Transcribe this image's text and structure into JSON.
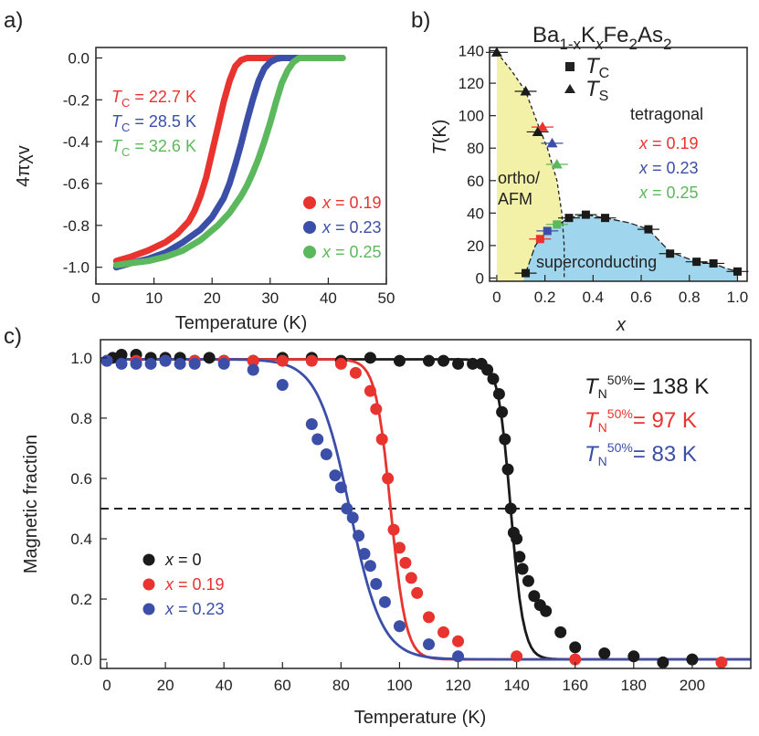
{
  "figure_id": "Ba1-xKxFe2As2 figure",
  "colors": {
    "black": "#1a1a1a",
    "red": "#e8332f",
    "blue": "#3b4ea8",
    "green": "#5cb85c",
    "ortho": "#f3f0a8",
    "sc": "#9fd6ee"
  },
  "chart_data": [
    {
      "panel": "a)",
      "type": "line",
      "xlabel": "Temperature (K)",
      "ylabel": "4πχv",
      "xlim": [
        0,
        50
      ],
      "ylim": [
        -1.08,
        0.05
      ],
      "xticks": [
        0,
        10,
        20,
        30,
        40,
        50
      ],
      "yticks": [
        0.0,
        -0.2,
        -0.4,
        -0.6,
        -0.8,
        -1.0
      ],
      "ytick_labels": [
        "0.0",
        "-0.2",
        "-0.4",
        "-0.6",
        "-0.8",
        "-1.0"
      ],
      "annotations": [
        {
          "label": "T",
          "sub": "C",
          "rest": " = 22.7 K",
          "color": "#e8332f"
        },
        {
          "label": "T",
          "sub": "C",
          "rest": " = 28.5 K",
          "color": "#3b4ea8"
        },
        {
          "label": "T",
          "sub": "C",
          "rest": " = 32.6 K",
          "color": "#5cb85c"
        }
      ],
      "legend": [
        {
          "label": "x",
          "rest": " = 0.19",
          "color": "#e8332f"
        },
        {
          "label": "x",
          "rest": " = 0.23",
          "color": "#3b4ea8"
        },
        {
          "label": "x",
          "rest": " = 0.25",
          "color": "#5cb85c"
        }
      ],
      "series": [
        {
          "name": "x = 0.19",
          "color": "#e8332f",
          "x": [
            3.5,
            6,
            9,
            12,
            14,
            16,
            17,
            18,
            19,
            20,
            21,
            22,
            23,
            24,
            25,
            26,
            28,
            30,
            33,
            37
          ],
          "y": [
            -0.97,
            -0.95,
            -0.92,
            -0.88,
            -0.84,
            -0.78,
            -0.73,
            -0.66,
            -0.57,
            -0.45,
            -0.33,
            -0.21,
            -0.11,
            -0.04,
            -0.01,
            0.0,
            0.0,
            0.0,
            0.0,
            0.0
          ]
        },
        {
          "name": "x = 0.23",
          "color": "#3b4ea8",
          "x": [
            3.5,
            6,
            9,
            12,
            15,
            18,
            20,
            22,
            23,
            24,
            25,
            26,
            27,
            28,
            29,
            30,
            31,
            32,
            34,
            36,
            38
          ],
          "y": [
            -1.0,
            -0.98,
            -0.96,
            -0.93,
            -0.88,
            -0.82,
            -0.76,
            -0.67,
            -0.6,
            -0.51,
            -0.41,
            -0.3,
            -0.2,
            -0.11,
            -0.05,
            -0.02,
            -0.005,
            0.0,
            0.0,
            0.0,
            0.0
          ]
        },
        {
          "name": "x = 0.25",
          "color": "#5cb85c",
          "x": [
            3.5,
            6,
            9,
            12,
            15,
            18,
            21,
            23,
            25,
            26,
            27,
            28,
            29,
            30,
            31,
            32,
            33,
            34,
            35,
            37,
            40,
            42.5
          ],
          "y": [
            -0.99,
            -0.98,
            -0.97,
            -0.95,
            -0.92,
            -0.87,
            -0.8,
            -0.74,
            -0.66,
            -0.61,
            -0.55,
            -0.48,
            -0.4,
            -0.31,
            -0.21,
            -0.12,
            -0.06,
            -0.02,
            0.0,
            0.0,
            0.0,
            0.0
          ]
        }
      ]
    },
    {
      "panel": "b)",
      "type": "scatter",
      "title_parts": [
        "Ba",
        "1-x",
        "K",
        "x",
        "Fe",
        "2",
        "As",
        "2"
      ],
      "xlabel": "x",
      "ylabel": "T(K)",
      "xlim": [
        -0.03,
        1.04
      ],
      "ylim": [
        -2,
        142
      ],
      "xticks": [
        0,
        0.2,
        0.4,
        0.6,
        0.8,
        1.0
      ],
      "xtick_labels": [
        "0",
        "0.2",
        "0.4",
        "0.6",
        "0.8",
        "1.0"
      ],
      "yticks": [
        0,
        20,
        40,
        60,
        80,
        100,
        120,
        140
      ],
      "legend": [
        {
          "marker": "square",
          "label": "T",
          "sub": "C"
        },
        {
          "marker": "triangle",
          "label": "T",
          "sub": "S"
        }
      ],
      "region_labels": {
        "tetragonal": "tetragonal",
        "ortho_line1": "ortho/",
        "ortho_line2": "AFM",
        "superconducting": "superconducting"
      },
      "x_labels_colored": [
        {
          "label": "x",
          "rest": " = 0.19",
          "color": "#e8332f"
        },
        {
          "label": "x",
          "rest": " = 0.23",
          "color": "#3b4ea8"
        },
        {
          "label": "x",
          "rest": " = 0.25",
          "color": "#5cb85c"
        }
      ],
      "tc_points": [
        {
          "x": 0.12,
          "y": 3,
          "color": "#1a1a1a"
        },
        {
          "x": 0.18,
          "y": 24,
          "color": "#e8332f"
        },
        {
          "x": 0.21,
          "y": 29,
          "color": "#3b4ea8"
        },
        {
          "x": 0.25,
          "y": 33,
          "color": "#5cb85c"
        },
        {
          "x": 0.3,
          "y": 37,
          "color": "#1a1a1a"
        },
        {
          "x": 0.37,
          "y": 39,
          "color": "#1a1a1a"
        },
        {
          "x": 0.45,
          "y": 37,
          "color": "#1a1a1a"
        },
        {
          "x": 0.63,
          "y": 30,
          "color": "#1a1a1a"
        },
        {
          "x": 0.72,
          "y": 15,
          "color": "#1a1a1a"
        },
        {
          "x": 0.83,
          "y": 10,
          "color": "#1a1a1a"
        },
        {
          "x": 0.9,
          "y": 9,
          "color": "#1a1a1a"
        },
        {
          "x": 1.0,
          "y": 4,
          "color": "#1a1a1a"
        }
      ],
      "ts_points": [
        {
          "x": 0.0,
          "y": 139,
          "color": "#1a1a1a"
        },
        {
          "x": 0.12,
          "y": 115,
          "color": "#1a1a1a"
        },
        {
          "x": 0.19,
          "y": 93,
          "color": "#e8332f"
        },
        {
          "x": 0.17,
          "y": 90,
          "color": "#1a1a1a"
        },
        {
          "x": 0.23,
          "y": 83,
          "color": "#3b4ea8"
        },
        {
          "x": 0.25,
          "y": 70,
          "color": "#5cb85c"
        }
      ]
    },
    {
      "panel": "c)",
      "type": "scatter",
      "xlabel": "Temperature (K)",
      "ylabel": "Magnetic fraction",
      "xlim": [
        0,
        220
      ],
      "ylim": [
        -0.03,
        1.06
      ],
      "xticks": [
        0,
        20,
        40,
        60,
        80,
        100,
        120,
        140,
        160,
        180,
        200
      ],
      "yticks": [
        0.0,
        0.2,
        0.4,
        0.6,
        0.8,
        1.0
      ],
      "ytick_labels": [
        "0.0",
        "0.2",
        "0.4",
        "0.6",
        "0.8",
        "1.0"
      ],
      "dashed_line_y": 0.5,
      "annotations": [
        {
          "label": "T",
          "sub": "N",
          "sup": "50%",
          "rest": "= 138 K",
          "color": "#1a1a1a"
        },
        {
          "label": "T",
          "sub": "N",
          "sup": "50%",
          "rest": "= 97 K",
          "color": "#e8332f"
        },
        {
          "label": "T",
          "sub": "N",
          "sup": "50%",
          "rest": "= 83 K",
          "color": "#3b4ea8"
        }
      ],
      "legend": [
        {
          "label": "x",
          "rest": " = 0",
          "color": "#1a1a1a"
        },
        {
          "label": "x",
          "rest": " = 0.19",
          "color": "#e8332f"
        },
        {
          "label": "x",
          "rest": " = 0.23",
          "color": "#3b4ea8"
        }
      ],
      "series": [
        {
          "name": "x = 0",
          "color": "#1a1a1a",
          "tn": 138,
          "width": 2.2,
          "x": [
            2,
            5,
            10,
            15,
            20,
            25,
            30,
            35,
            40,
            50,
            60,
            70,
            80,
            90,
            100,
            110,
            115,
            120,
            125,
            128,
            130,
            132,
            134,
            135,
            136,
            137,
            138,
            139,
            140,
            141,
            142,
            144,
            146,
            148,
            150,
            155,
            160,
            170,
            180,
            190,
            200
          ],
          "y": [
            1.0,
            1.01,
            1.01,
            1.0,
            1.0,
            1.0,
            0.99,
            1.0,
            0.99,
            0.99,
            1.0,
            1.0,
            0.99,
            1.0,
            0.99,
            0.99,
            0.99,
            0.98,
            0.98,
            0.98,
            0.96,
            0.93,
            0.88,
            0.82,
            0.73,
            0.63,
            0.5,
            0.42,
            0.4,
            0.34,
            0.3,
            0.26,
            0.21,
            0.18,
            0.16,
            0.09,
            0.04,
            0.02,
            0.01,
            -0.01,
            0.0
          ]
        },
        {
          "name": "x = 0.19",
          "color": "#e8332f",
          "tn": 97,
          "width": 2.6,
          "x": [
            0,
            10,
            20,
            30,
            40,
            50,
            60,
            70,
            80,
            85,
            90,
            92,
            94,
            96,
            98,
            100,
            102,
            104,
            106,
            110,
            115,
            120,
            140,
            160,
            210
          ],
          "y": [
            0.99,
            0.99,
            0.99,
            0.99,
            0.99,
            0.99,
            0.99,
            0.99,
            0.98,
            0.95,
            0.89,
            0.83,
            0.73,
            0.6,
            0.43,
            0.37,
            0.32,
            0.27,
            0.22,
            0.14,
            0.09,
            0.06,
            0.01,
            0.0,
            -0.01
          ]
        },
        {
          "name": "x = 0.23",
          "color": "#3b4ea8",
          "tn": 83,
          "width": 5.5,
          "x": [
            0,
            5,
            10,
            15,
            20,
            25,
            30,
            40,
            50,
            60,
            70,
            72,
            75,
            78,
            80,
            82,
            84,
            86,
            88,
            90,
            92,
            95,
            100,
            110,
            120
          ],
          "y": [
            0.99,
            0.98,
            0.98,
            0.98,
            0.99,
            0.98,
            0.98,
            0.98,
            0.96,
            0.91,
            0.78,
            0.73,
            0.68,
            0.61,
            0.57,
            0.5,
            0.47,
            0.41,
            0.35,
            0.31,
            0.25,
            0.19,
            0.11,
            0.05,
            0.01
          ]
        }
      ]
    }
  ]
}
